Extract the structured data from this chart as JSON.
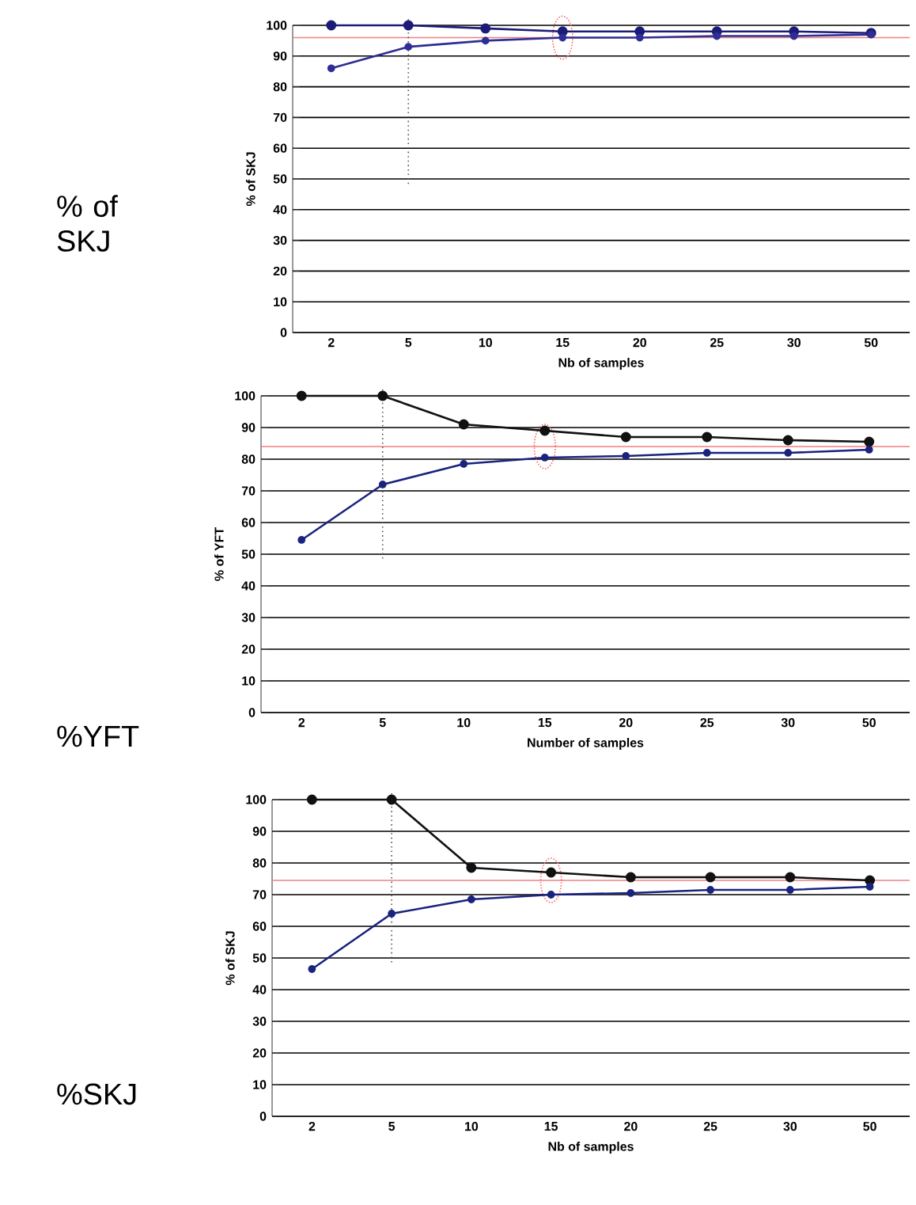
{
  "chart_data": [
    {
      "type": "line",
      "xlabel": "Nb of samples",
      "ylabel": "% of SKJ",
      "annotations": [
        "% of SKJ"
      ],
      "categories": [
        "2",
        "5",
        "10",
        "15",
        "20",
        "25",
        "30",
        "50"
      ],
      "ylim": [
        0,
        100
      ],
      "yticks": [
        0,
        10,
        20,
        30,
        40,
        50,
        60,
        70,
        80,
        90,
        100
      ],
      "grid": "y",
      "marker": "circle",
      "line_style": "solid",
      "series": [
        {
          "color": "#1c1c78",
          "values": [
            100,
            100,
            99,
            98,
            98,
            98,
            98,
            97.5
          ]
        },
        {
          "color": "#2e2e96",
          "values": [
            86,
            93,
            95,
            96,
            96,
            96.5,
            96.5,
            97
          ]
        }
      ],
      "ref_lines": [
        {
          "axis": "y",
          "value": 96,
          "color": "#f08080",
          "line_style": "solid"
        },
        {
          "axis": "x",
          "value": "5",
          "color": "#555555",
          "line_style": "dotted"
        }
      ]
    },
    {
      "type": "line",
      "xlabel": "Number of samples",
      "ylabel": "% of YFT",
      "annotations": [
        "%YFT"
      ],
      "categories": [
        "2",
        "5",
        "10",
        "15",
        "20",
        "25",
        "30",
        "50"
      ],
      "ylim": [
        0,
        100
      ],
      "yticks": [
        0,
        10,
        20,
        30,
        40,
        50,
        60,
        70,
        80,
        90,
        100
      ],
      "grid": "y",
      "marker": "circle",
      "line_style": "solid",
      "series": [
        {
          "color": "#111111",
          "values": [
            100,
            100,
            91,
            89,
            87,
            87,
            86,
            85.5
          ]
        },
        {
          "color": "#1a237e",
          "values": [
            54.5,
            72,
            78.5,
            80.5,
            81,
            82,
            82,
            83
          ]
        }
      ],
      "ref_lines": [
        {
          "axis": "y",
          "value": 84,
          "color": "#f08080",
          "line_style": "solid"
        },
        {
          "axis": "x",
          "value": "5",
          "color": "#555555",
          "line_style": "dotted"
        }
      ]
    },
    {
      "type": "line",
      "xlabel": "Nb of samples",
      "ylabel": "% of SKJ",
      "annotations": [
        "%SKJ"
      ],
      "categories": [
        "2",
        "5",
        "10",
        "15",
        "20",
        "25",
        "30",
        "50"
      ],
      "ylim": [
        0,
        100
      ],
      "yticks": [
        0,
        10,
        20,
        30,
        40,
        50,
        60,
        70,
        80,
        90,
        100
      ],
      "grid": "y",
      "marker": "circle",
      "line_style": "solid",
      "series": [
        {
          "color": "#111111",
          "values": [
            100,
            100,
            78.5,
            77,
            75.5,
            75.5,
            75.5,
            74.5
          ]
        },
        {
          "color": "#1a237e",
          "values": [
            46.5,
            64,
            68.5,
            70,
            70.5,
            71.5,
            71.5,
            72.5
          ]
        }
      ],
      "ref_lines": [
        {
          "axis": "y",
          "value": 74.5,
          "color": "#f08080",
          "line_style": "solid"
        },
        {
          "axis": "x",
          "value": "5",
          "color": "#555555",
          "line_style": "dotted"
        }
      ]
    }
  ]
}
